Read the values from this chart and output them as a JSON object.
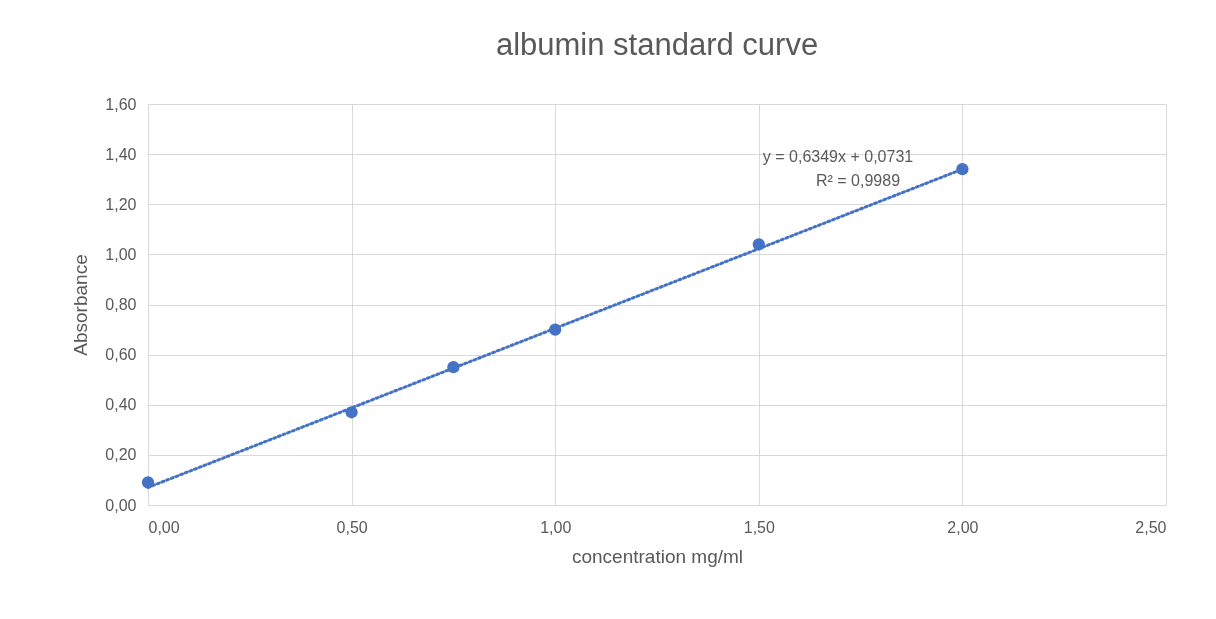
{
  "chart_data": {
    "type": "scatter",
    "title": "albumin standard curve",
    "xlabel": "concentration mg/ml",
    "ylabel": "Absorbance",
    "x": [
      0,
      0.5,
      0.75,
      1.0,
      1.5,
      2.0
    ],
    "series": [
      {
        "type": "scatter",
        "color": "#4472c4",
        "values": [
          0.09,
          0.37,
          0.55,
          0.7,
          1.04,
          1.34
        ],
        "marker": "circle"
      },
      {
        "type": "line",
        "color": "#4472c4",
        "x": [
          0,
          2.0
        ],
        "values": [
          0.07,
          1.34
        ],
        "line_style": "dotted",
        "marker": "none"
      }
    ],
    "xlim": [
      0,
      2.5
    ],
    "xticks": [
      {
        "value": 0,
        "label": "0,00"
      },
      {
        "value": 0.5,
        "label": "0,50"
      },
      {
        "value": 1,
        "label": "1,00"
      },
      {
        "value": 1.5,
        "label": "1,50"
      },
      {
        "value": 2,
        "label": "2,00"
      },
      {
        "value": 2.5,
        "label": "2,50"
      }
    ],
    "ylim": [
      0,
      1.6
    ],
    "yticks": [
      {
        "value": 0,
        "label": "0,00"
      },
      {
        "value": 0.2,
        "label": "0,20"
      },
      {
        "value": 0.4,
        "label": "0,40"
      },
      {
        "value": 0.6,
        "label": "0,60"
      },
      {
        "value": 0.8,
        "label": "0,80"
      },
      {
        "value": 1,
        "label": "1,00"
      },
      {
        "value": 1.2,
        "label": "1,20"
      },
      {
        "value": 1.4,
        "label": "1,40"
      },
      {
        "value": 1.6,
        "label": "1,60"
      }
    ],
    "annotations": [
      "y = 0,6349x + 0,0731",
      "R² = 0,9989"
    ],
    "grid": true
  }
}
